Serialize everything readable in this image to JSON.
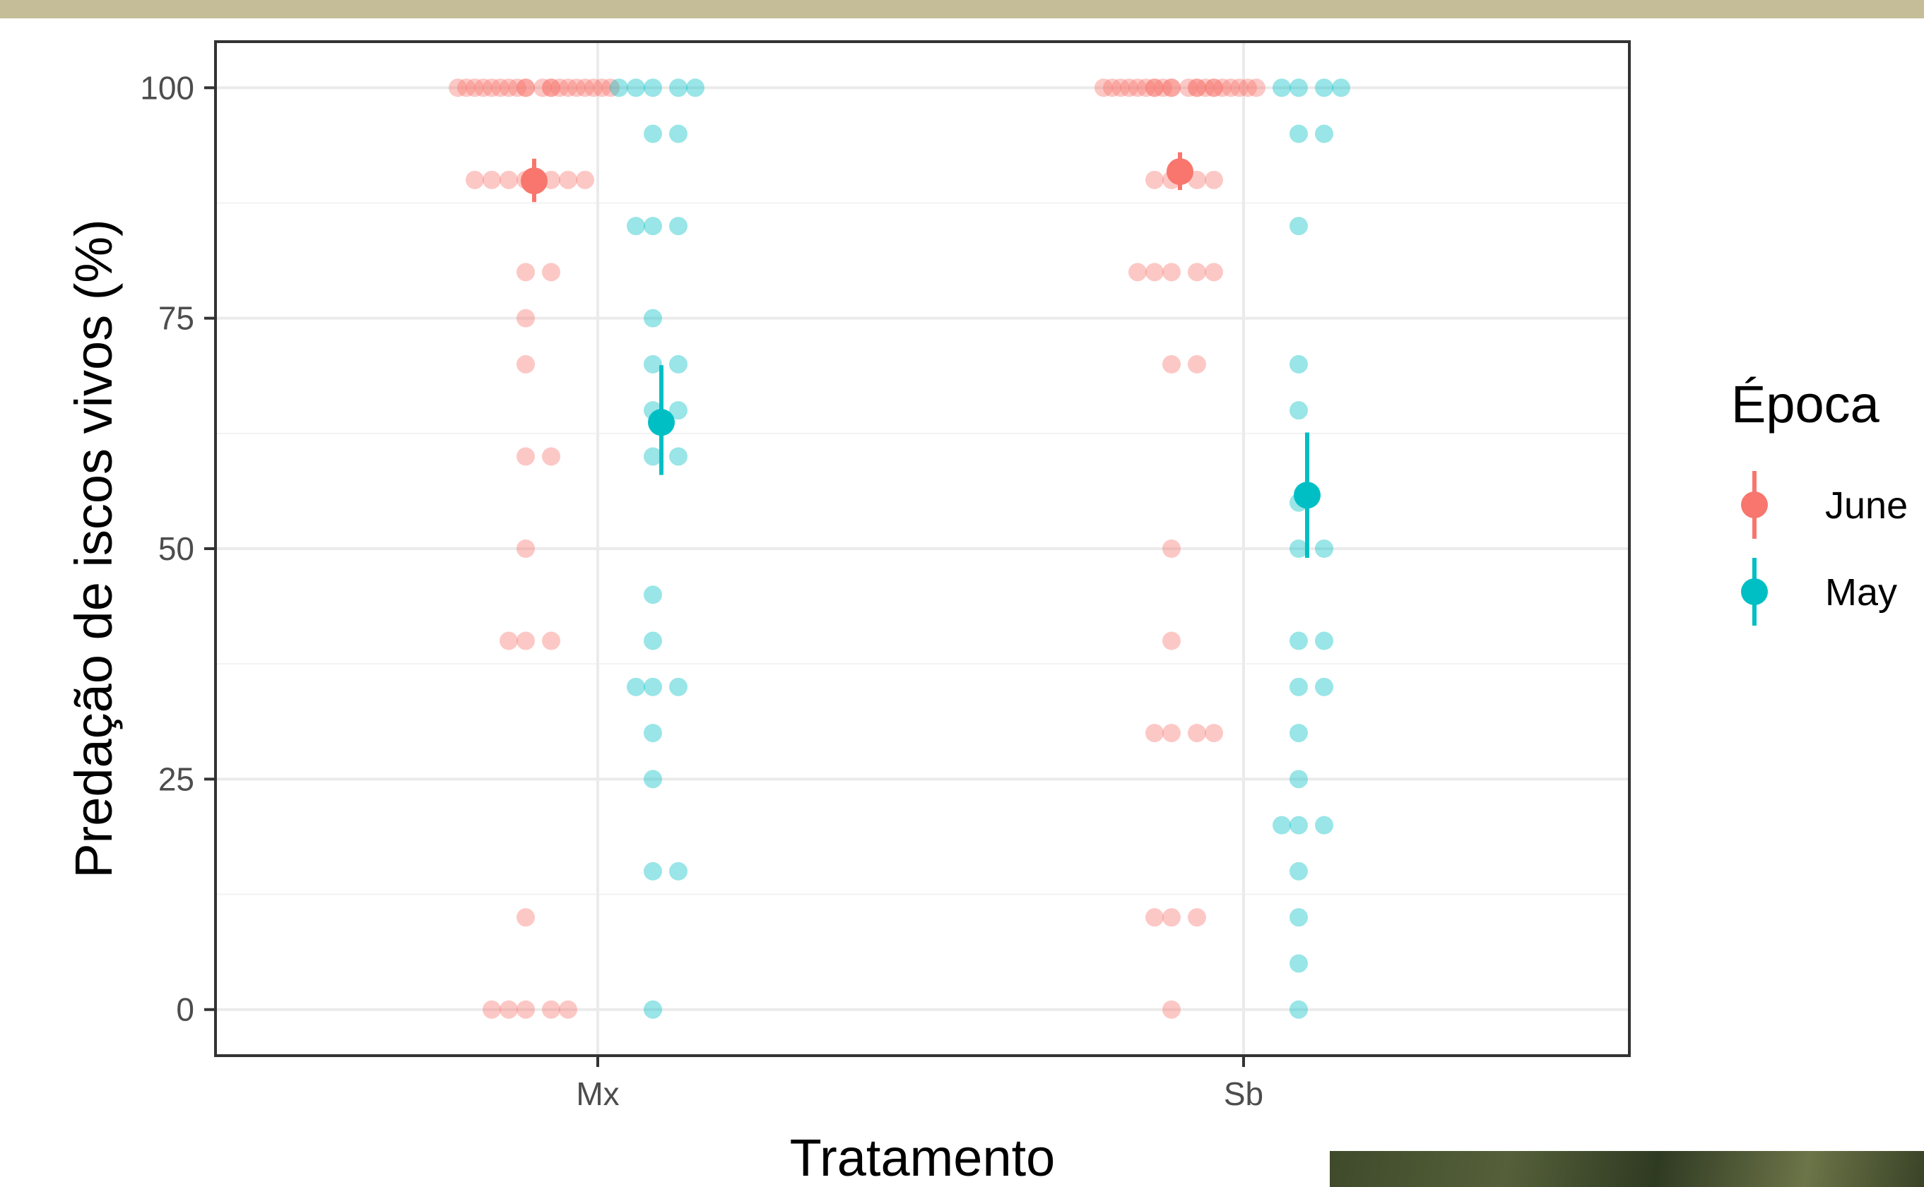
{
  "chart_data": {
    "type": "scatter",
    "xlabel": "Tratamento",
    "ylabel": "Predação de iscos vivos (%)",
    "categories": [
      "Mx",
      "Sb"
    ],
    "yticks": [
      0,
      25,
      50,
      75,
      100
    ],
    "ylim": [
      -5,
      105
    ],
    "grid": true,
    "legend": {
      "title": "Época",
      "position": "right",
      "entries": [
        "June",
        "May"
      ]
    },
    "colors": {
      "June": "#F8766D",
      "May": "#00BFC4"
    },
    "series": [
      {
        "name": "June",
        "points": {
          "Mx": [
            100,
            100,
            100,
            100,
            100,
            100,
            100,
            100,
            100,
            100,
            100,
            100,
            100,
            100,
            100,
            100,
            100,
            100,
            100,
            100,
            90,
            90,
            90,
            90,
            90,
            90,
            90,
            80,
            80,
            75,
            70,
            60,
            60,
            50,
            40,
            40,
            40,
            10,
            0,
            0,
            0,
            0,
            0
          ],
          "Sb": [
            100,
            100,
            100,
            100,
            100,
            100,
            100,
            100,
            100,
            100,
            100,
            100,
            100,
            100,
            100,
            100,
            100,
            100,
            100,
            100,
            100,
            100,
            90,
            90,
            90,
            90,
            80,
            80,
            80,
            80,
            80,
            70,
            70,
            50,
            40,
            30,
            30,
            30,
            30,
            10,
            10,
            10,
            0
          ]
        },
        "summary": {
          "Mx": {
            "mean": 89.9,
            "low": 87.6,
            "high": 92.3
          },
          "Sb": {
            "mean": 90.9,
            "low": 88.9,
            "high": 93.0
          }
        }
      },
      {
        "name": "May",
        "points": {
          "Mx": [
            100,
            100,
            100,
            100,
            100,
            95,
            95,
            85,
            85,
            85,
            75,
            70,
            70,
            65,
            65,
            60,
            60,
            45,
            40,
            35,
            35,
            35,
            30,
            25,
            15,
            15,
            0
          ],
          "Sb": [
            100,
            100,
            100,
            100,
            95,
            95,
            85,
            70,
            65,
            55,
            50,
            50,
            40,
            40,
            35,
            35,
            30,
            25,
            20,
            20,
            20,
            15,
            10,
            5,
            0
          ]
        },
        "summary": {
          "Mx": {
            "mean": 63.7,
            "low": 58.0,
            "high": 69.9
          },
          "Sb": {
            "mean": 55.8,
            "low": 49.0,
            "high": 62.6
          }
        }
      }
    ]
  }
}
